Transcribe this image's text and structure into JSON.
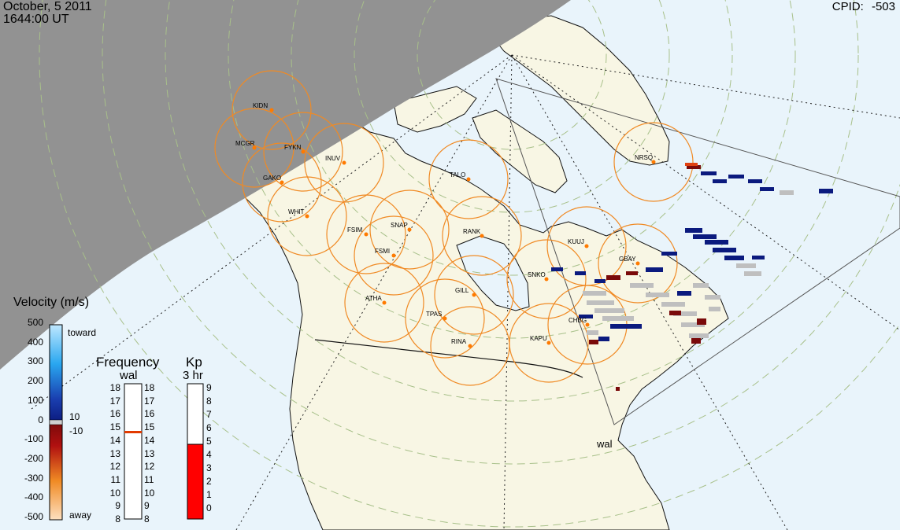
{
  "header": {
    "date": "October, 5 2011",
    "time": "1644:00 UT",
    "cpid_label": "CPID:",
    "cpid_value": "-503"
  },
  "colors": {
    "ocean": "#e9f4fb",
    "land": "#f8f6e4",
    "night": "#929292",
    "radar_circle": "#f08a24",
    "radar_dot": "#ff7a00",
    "toward_dark": "#0b1a7e",
    "away_dark": "#7a0a0a",
    "ground_scatter": "#bfbfbf",
    "kp_fill": "#ff0000",
    "freq_marker": "#e23a00"
  },
  "radars": [
    "KIDN",
    "MCGR",
    "FYKN",
    "INUV",
    "GAKO",
    "WHIT",
    "FSIM",
    "SNAP",
    "FSMI",
    "RANK",
    "TALO",
    "NRSQ",
    "KUUJ",
    "GBAY",
    "SNKO",
    "GILL",
    "ATHA",
    "TPAS",
    "RINA",
    "KAPU",
    "CHBG"
  ],
  "fov_label": "wal",
  "velocity_scale": {
    "title": "Velocity (m/s)",
    "toward": "toward",
    "away": "away",
    "ticks": [
      "500",
      "400",
      "300",
      "200",
      "100",
      "0",
      "-100",
      "-200",
      "-300",
      "-400",
      "-500"
    ],
    "threshold_pos": "10",
    "threshold_neg": "-10"
  },
  "frequency_scale": {
    "title": "Frequency",
    "subtitle": "wal",
    "ticks": [
      "18",
      "17",
      "16",
      "15",
      "14",
      "13",
      "12",
      "11",
      "10",
      "9",
      "8"
    ],
    "current_mhz": 14.5
  },
  "kp_scale": {
    "title": "Kp",
    "subtitle": "3 hr",
    "ticks": [
      "9",
      "8",
      "7",
      "6",
      "5",
      "4",
      "3",
      "2",
      "1",
      "0"
    ],
    "value": 5
  }
}
